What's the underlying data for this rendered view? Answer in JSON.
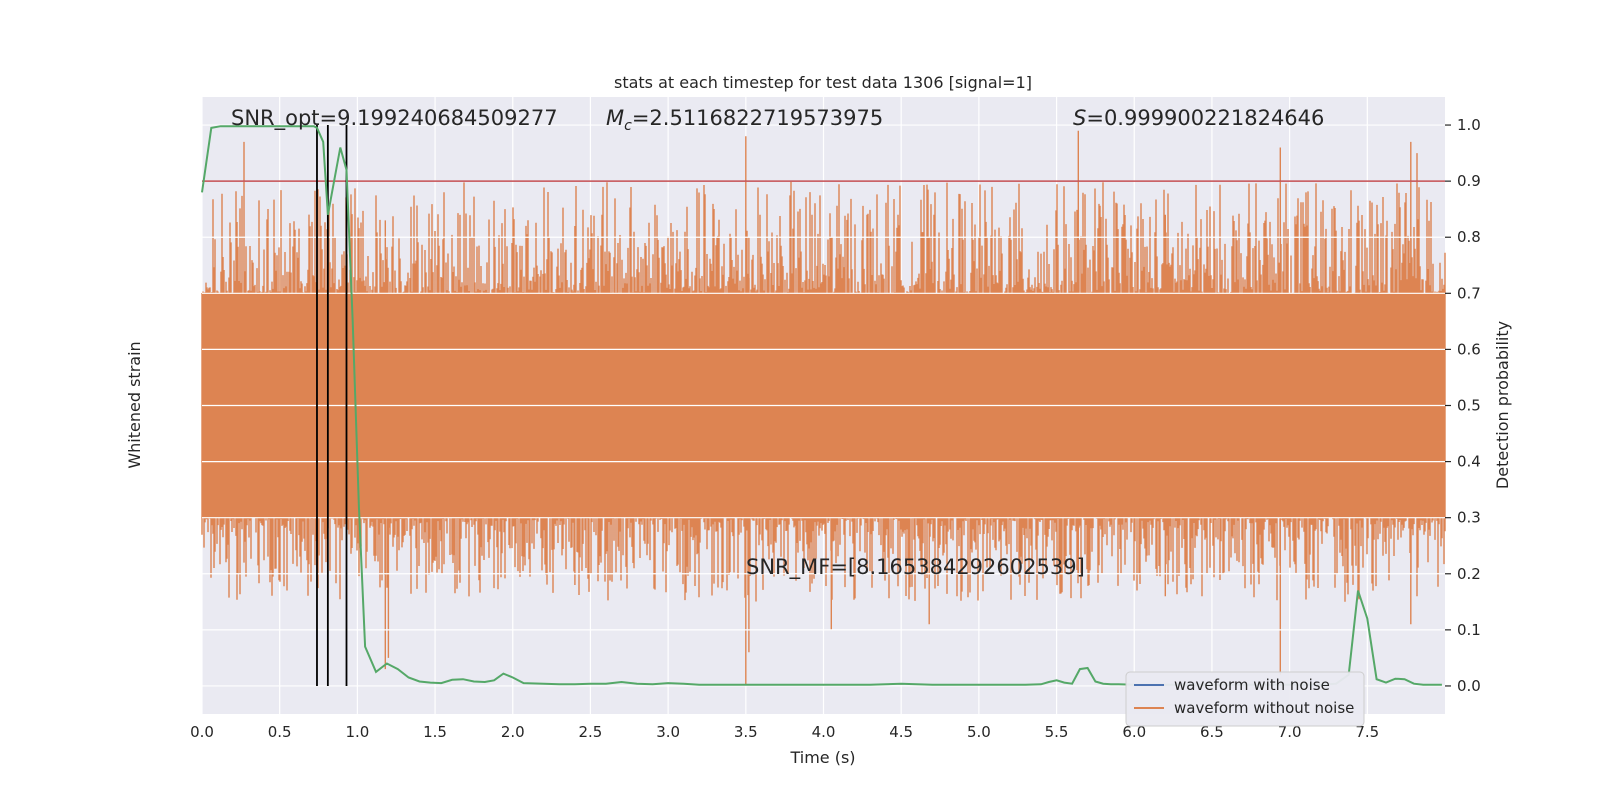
{
  "chart_data": {
    "type": "line",
    "title": "stats at each timestep for test data 1306 [signal=1]",
    "xlabel": "Time (s)",
    "ylabel_left": "Whitened strain",
    "ylabel_right": "Detection probability",
    "xlim": [
      0,
      8
    ],
    "ylim_right": [
      -0.05,
      1.05
    ],
    "grid": true,
    "x_ticks": [
      "0.0",
      "0.5",
      "1.0",
      "1.5",
      "2.0",
      "2.5",
      "3.0",
      "3.5",
      "4.0",
      "4.5",
      "5.0",
      "5.5",
      "6.0",
      "6.5",
      "7.0",
      "7.5"
    ],
    "x_tick_values": [
      0,
      0.5,
      1,
      1.5,
      2,
      2.5,
      3,
      3.5,
      4,
      4.5,
      5,
      5.5,
      6,
      6.5,
      7,
      7.5
    ],
    "right_ticks": [
      "0.0",
      "0.1",
      "0.2",
      "0.3",
      "0.4",
      "0.5",
      "0.6",
      "0.7",
      "0.8",
      "0.9",
      "1.0"
    ],
    "right_tick_values": [
      0,
      0.1,
      0.2,
      0.3,
      0.4,
      0.5,
      0.6,
      0.7,
      0.8,
      0.9,
      1.0
    ],
    "threshold": 0.9,
    "threshold_color": "#c44e52",
    "vlines_x": [
      0.74,
      0.81,
      0.93
    ],
    "annotations": {
      "snr_opt": "SNR_opt=9.199240684509277",
      "mc_symbol": "M",
      "mc_subscript": "c",
      "mc_value": "=2.5116822719573975",
      "s_symbol": "S",
      "s_value": "=0.999900221824646",
      "snr_mf": "SNR_MF=[8.165384292602539]"
    },
    "legend_placement": "lower-right",
    "series": [
      {
        "name": "waveform with noise",
        "color": "#4c72b0",
        "values": []
      },
      {
        "name": "waveform without noise",
        "color": "#dd8452",
        "band": [
          0.3,
          0.7
        ]
      },
      {
        "color": "#55a868",
        "x": [
          0.0,
          0.06,
          0.12,
          0.18,
          0.24,
          0.3,
          0.36,
          0.42,
          0.48,
          0.54,
          0.6,
          0.66,
          0.72,
          0.74,
          0.78,
          0.81,
          0.85,
          0.89,
          0.93,
          0.97,
          1.01,
          1.05,
          1.12,
          1.19,
          1.26,
          1.33,
          1.4,
          1.47,
          1.54,
          1.61,
          1.68,
          1.75,
          1.82,
          1.88,
          1.94,
          2.0,
          2.07,
          2.2,
          2.3,
          2.4,
          2.5,
          2.6,
          2.7,
          2.8,
          2.9,
          3.0,
          3.1,
          3.2,
          3.3,
          3.4,
          3.5,
          3.6,
          3.7,
          3.8,
          3.9,
          4.0,
          4.1,
          4.2,
          4.3,
          4.4,
          4.5,
          4.6,
          4.7,
          4.8,
          4.9,
          5.0,
          5.1,
          5.2,
          5.3,
          5.4,
          5.45,
          5.5,
          5.55,
          5.6,
          5.65,
          5.7,
          5.75,
          5.8,
          5.85,
          5.9,
          6.0,
          6.1,
          6.2,
          6.3,
          6.4,
          6.5,
          6.6,
          6.7,
          6.8,
          6.9,
          7.0,
          7.1,
          7.2,
          7.3,
          7.38,
          7.44,
          7.5,
          7.56,
          7.62,
          7.68,
          7.74,
          7.8,
          7.86,
          7.92,
          7.98
        ],
        "values": [
          0.88,
          0.995,
          0.998,
          0.998,
          0.998,
          0.998,
          0.998,
          0.998,
          0.998,
          0.998,
          0.998,
          0.998,
          0.998,
          0.995,
          0.97,
          0.84,
          0.9,
          0.96,
          0.92,
          0.65,
          0.32,
          0.07,
          0.025,
          0.04,
          0.03,
          0.015,
          0.008,
          0.006,
          0.005,
          0.011,
          0.012,
          0.008,
          0.007,
          0.01,
          0.022,
          0.015,
          0.005,
          0.004,
          0.003,
          0.003,
          0.004,
          0.004,
          0.007,
          0.004,
          0.003,
          0.005,
          0.004,
          0.002,
          0.002,
          0.002,
          0.002,
          0.002,
          0.002,
          0.002,
          0.002,
          0.002,
          0.002,
          0.002,
          0.002,
          0.003,
          0.004,
          0.003,
          0.002,
          0.002,
          0.002,
          0.002,
          0.002,
          0.002,
          0.002,
          0.003,
          0.007,
          0.01,
          0.006,
          0.004,
          0.03,
          0.032,
          0.008,
          0.004,
          0.003,
          0.003,
          0.002,
          0.002,
          0.002,
          0.002,
          0.002,
          0.002,
          0.002,
          0.002,
          0.002,
          0.002,
          0.002,
          0.002,
          0.002,
          0.004,
          0.02,
          0.17,
          0.12,
          0.012,
          0.006,
          0.013,
          0.012,
          0.004,
          0.002,
          0.002,
          0.002
        ]
      }
    ]
  }
}
